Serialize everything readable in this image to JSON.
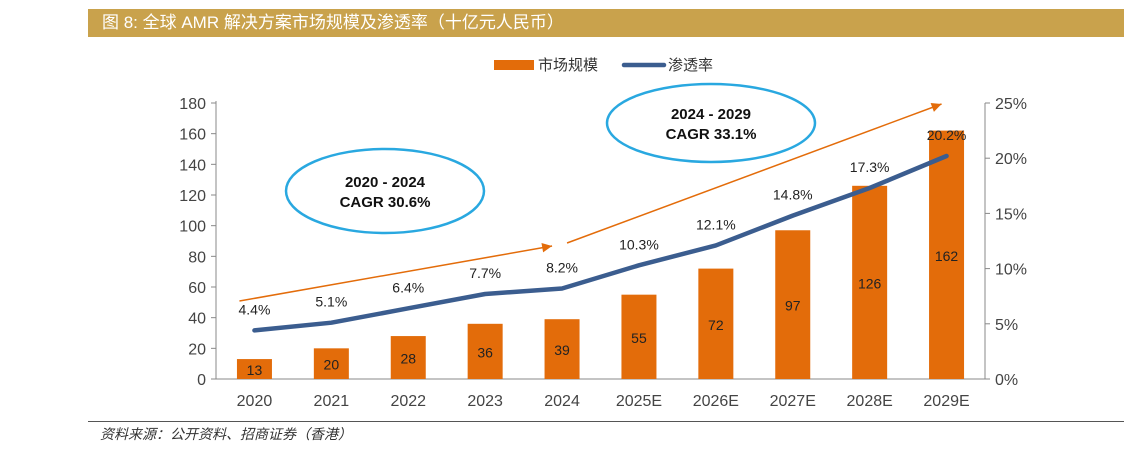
{
  "title": "图 8:  全球 AMR  解决方案市场规模及渗透率（十亿元人民币）",
  "source": "资料来源：公开资料、招商证券（香港）",
  "chart_data": {
    "type": "bar",
    "categories": [
      "2020",
      "2021",
      "2022",
      "2023",
      "2024",
      "2025E",
      "2026E",
      "2027E",
      "2028E",
      "2029E"
    ],
    "series": [
      {
        "name": "市场规模",
        "type": "bar",
        "axis": "left",
        "values": [
          13,
          20,
          28,
          36,
          39,
          55,
          72,
          97,
          126,
          162
        ],
        "labels": [
          "13",
          "20",
          "28",
          "36",
          "39",
          "55",
          "72",
          "97",
          "126",
          "162"
        ],
        "color": "#e36c0a"
      },
      {
        "name": "渗透率",
        "type": "line",
        "axis": "right",
        "values": [
          4.4,
          5.1,
          6.4,
          7.7,
          8.2,
          10.3,
          12.1,
          14.8,
          17.3,
          20.2
        ],
        "labels": [
          "4.4%",
          "5.1%",
          "6.4%",
          "7.7%",
          "8.2%",
          "10.3%",
          "12.1%",
          "14.8%",
          "17.3%",
          "20.2%"
        ],
        "color": "#3b5d8f"
      }
    ],
    "y_left": {
      "min": 0,
      "max": 180,
      "ticks": [
        "0",
        "20",
        "40",
        "60",
        "80",
        "100",
        "120",
        "140",
        "160",
        "180"
      ]
    },
    "y_right": {
      "min": 0,
      "max": 25,
      "ticks": [
        "0%",
        "5%",
        "10%",
        "15%",
        "20%",
        "25%"
      ]
    },
    "legend_position": "top-center",
    "grid": false,
    "annotations": [
      {
        "line1": "2020 - 2024",
        "line2": "CAGR 30.6%",
        "from": "2020",
        "to": "2024"
      },
      {
        "line1": "2024 - 2029",
        "line2": "CAGR 33.1%",
        "from": "2024",
        "to": "2029E"
      }
    ]
  }
}
